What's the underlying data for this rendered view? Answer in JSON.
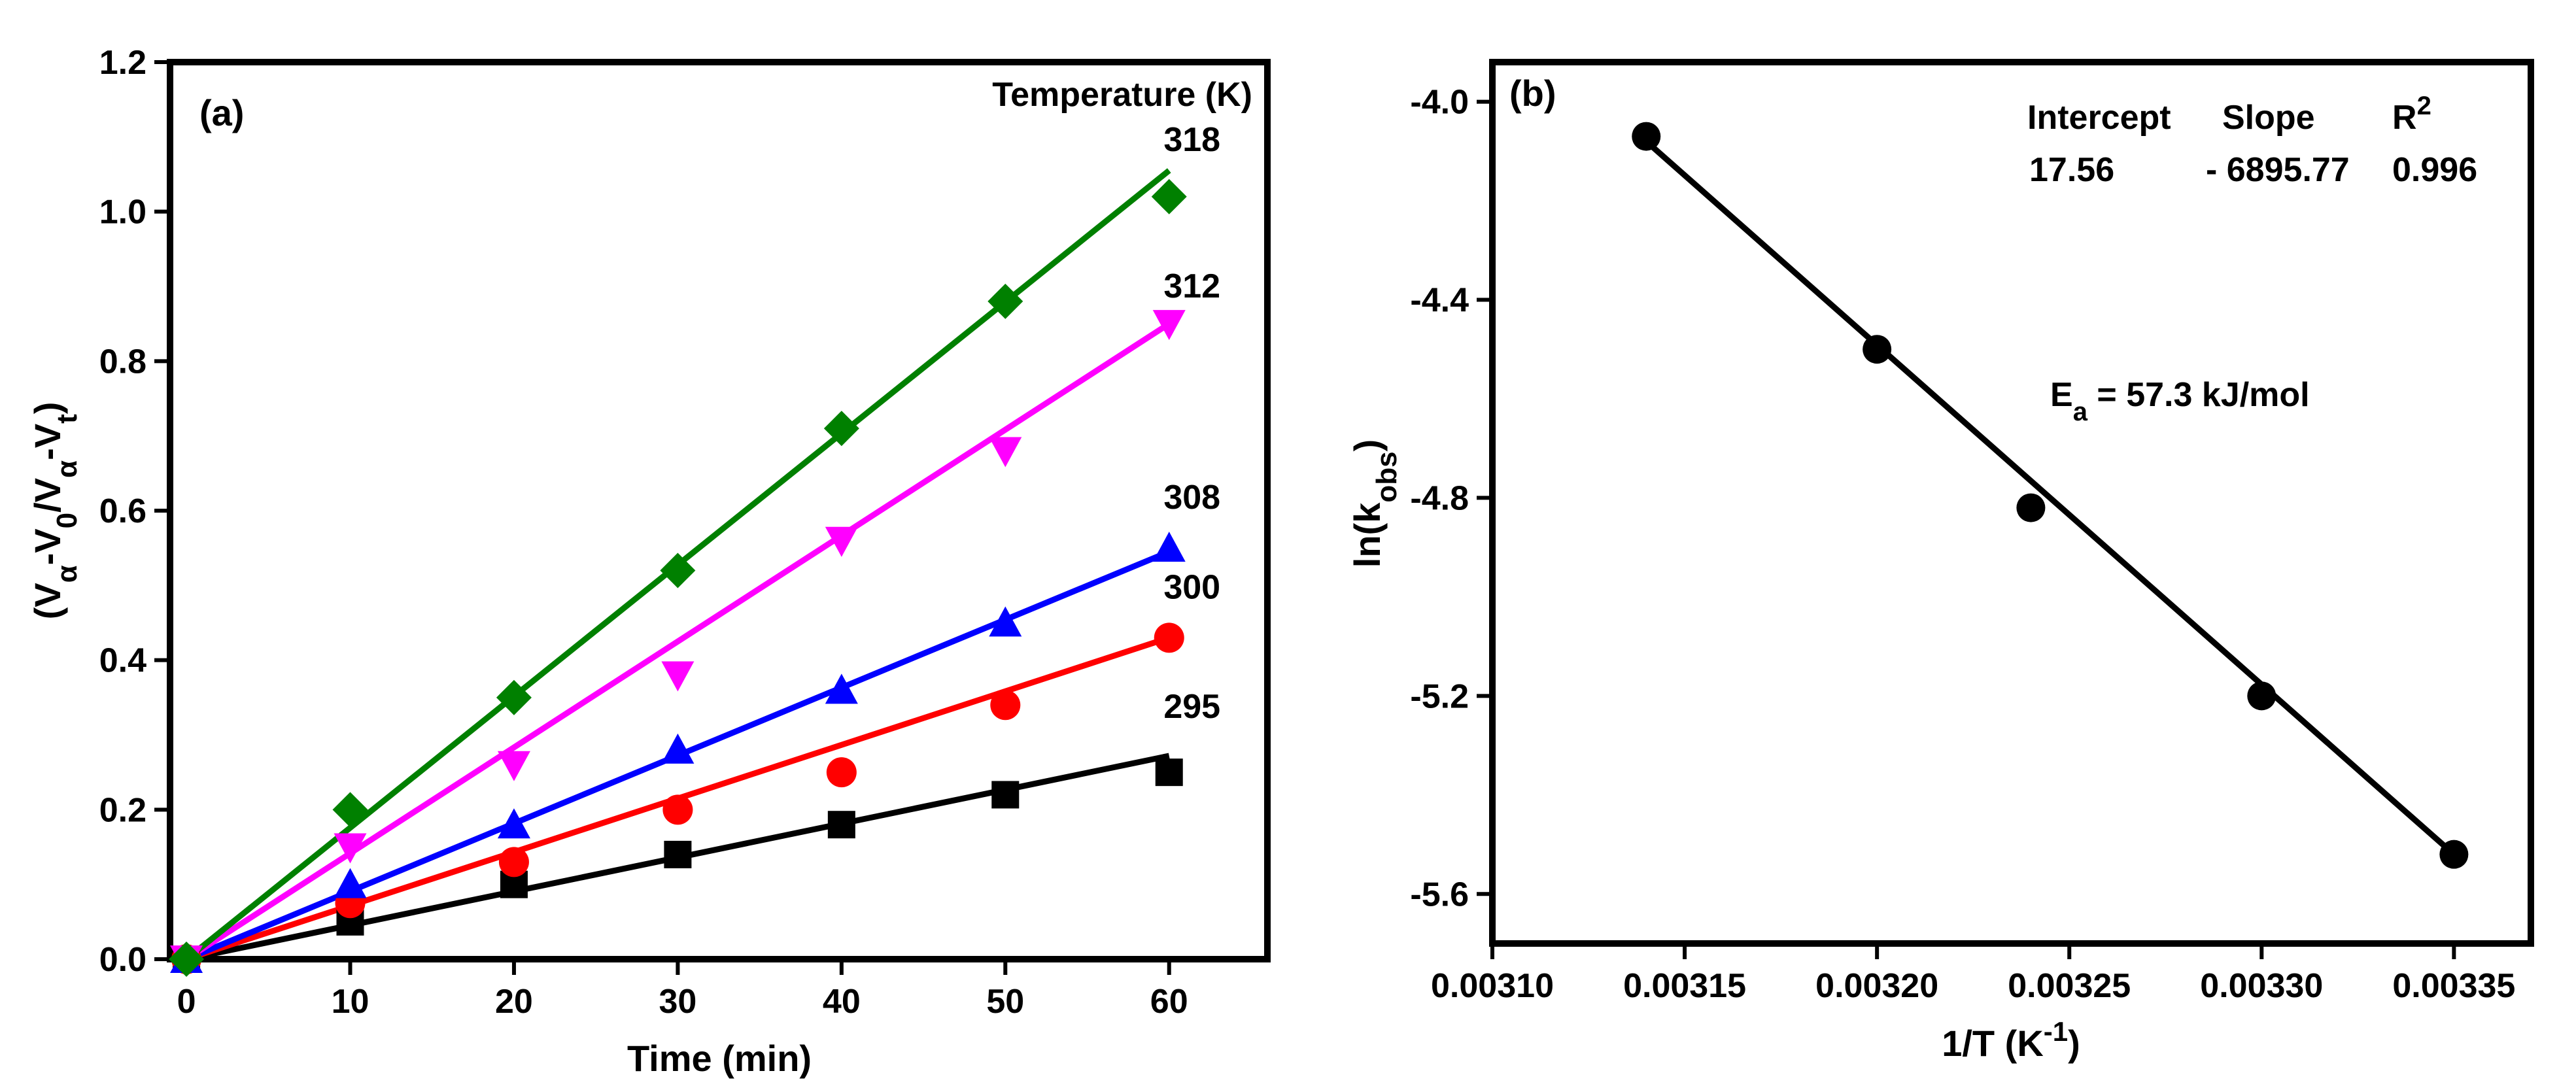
{
  "chart_data": [
    {
      "panel_label": "(a)",
      "type": "scatter",
      "xlabel": "Time (min)",
      "ylabel_parts": {
        "open": "(V",
        "s1": "α",
        "m1": "-V",
        "s2": "0",
        "m2": "/V",
        "s3": "α",
        "m3": "-V",
        "s4": "t",
        "close": ")"
      },
      "xlim": [
        -1,
        66
      ],
      "ylim": [
        0,
        1.2
      ],
      "xticks": [
        0,
        10,
        20,
        30,
        40,
        50,
        60
      ],
      "yticks": [
        0.0,
        0.2,
        0.4,
        0.6,
        0.8,
        1.0,
        1.2
      ],
      "xtick_labels": [
        "0",
        "10",
        "20",
        "30",
        "40",
        "50",
        "60"
      ],
      "ytick_labels": [
        "0.0",
        "0.2",
        "0.4",
        "0.6",
        "0.8",
        "1.0",
        "1.2"
      ],
      "legend_title": "Temperature (K)",
      "x": [
        0,
        10,
        20,
        30,
        40,
        50,
        60
      ],
      "series": [
        {
          "name": "295",
          "color": "#000000",
          "marker": "square",
          "values": [
            0,
            0.05,
            0.1,
            0.14,
            0.18,
            0.22,
            0.25
          ],
          "fit": [
            0,
            0.272
          ]
        },
        {
          "name": "300",
          "color": "#ff0000",
          "marker": "circle",
          "values": [
            0,
            0.075,
            0.13,
            0.2,
            0.25,
            0.34,
            0.43
          ],
          "fit": [
            0,
            0.43
          ]
        },
        {
          "name": "308",
          "color": "#0000ff",
          "marker": "triangle-up",
          "values": [
            0,
            0.1,
            0.18,
            0.28,
            0.36,
            0.45,
            0.55
          ],
          "fit": [
            0,
            0.545
          ]
        },
        {
          "name": "312",
          "color": "#ff00ff",
          "marker": "triangle-down",
          "values": [
            0,
            0.15,
            0.26,
            0.38,
            0.56,
            0.68,
            0.85
          ],
          "fit": [
            0,
            0.85
          ]
        },
        {
          "name": "318",
          "color": "#008000",
          "marker": "diamond",
          "values": [
            0,
            0.2,
            0.35,
            0.52,
            0.71,
            0.88,
            1.02
          ],
          "fit": [
            0,
            1.055
          ]
        }
      ]
    },
    {
      "panel_label": "(b)",
      "type": "scatter",
      "xlabel_parts": {
        "main": "1/T (K",
        "sup": "-1",
        "close": ")"
      },
      "ylabel_parts": {
        "main": "ln(k",
        "sub": "obs",
        "close": ")"
      },
      "xlim": [
        0.0031,
        0.00337
      ],
      "ylim": [
        -5.7,
        -3.92
      ],
      "xticks": [
        0.0031,
        0.00315,
        0.0032,
        0.00325,
        0.0033,
        0.00335
      ],
      "xtick_labels": [
        "0.00310",
        "0.00315",
        "0.00320",
        "0.00325",
        "0.00330",
        "0.00335"
      ],
      "yticks": [
        -5.6,
        -5.2,
        -4.8,
        -4.4,
        -4.0
      ],
      "ytick_labels": [
        "-5.6",
        "-5.2",
        "-4.8",
        "-4.4",
        "-4.0"
      ],
      "points": {
        "x": [
          0.00314,
          0.0032,
          0.00324,
          0.0033,
          0.00335
        ],
        "y": [
          -4.07,
          -4.5,
          -4.82,
          -5.2,
          -5.52
        ]
      },
      "fit_line": {
        "x": [
          0.00314,
          0.00335
        ],
        "y": [
          -4.08,
          -5.52
        ]
      },
      "table": {
        "headers": {
          "intercept": "Intercept",
          "slope": "Slope",
          "r2_main": "R",
          "r2_sup": "2"
        },
        "values": {
          "intercept": "17.56",
          "slope": "- 6895.77",
          "r2": "0.996"
        }
      },
      "annotation": {
        "main": "E",
        "sub": "a",
        "rest": " = 57.3 kJ/mol"
      }
    }
  ]
}
